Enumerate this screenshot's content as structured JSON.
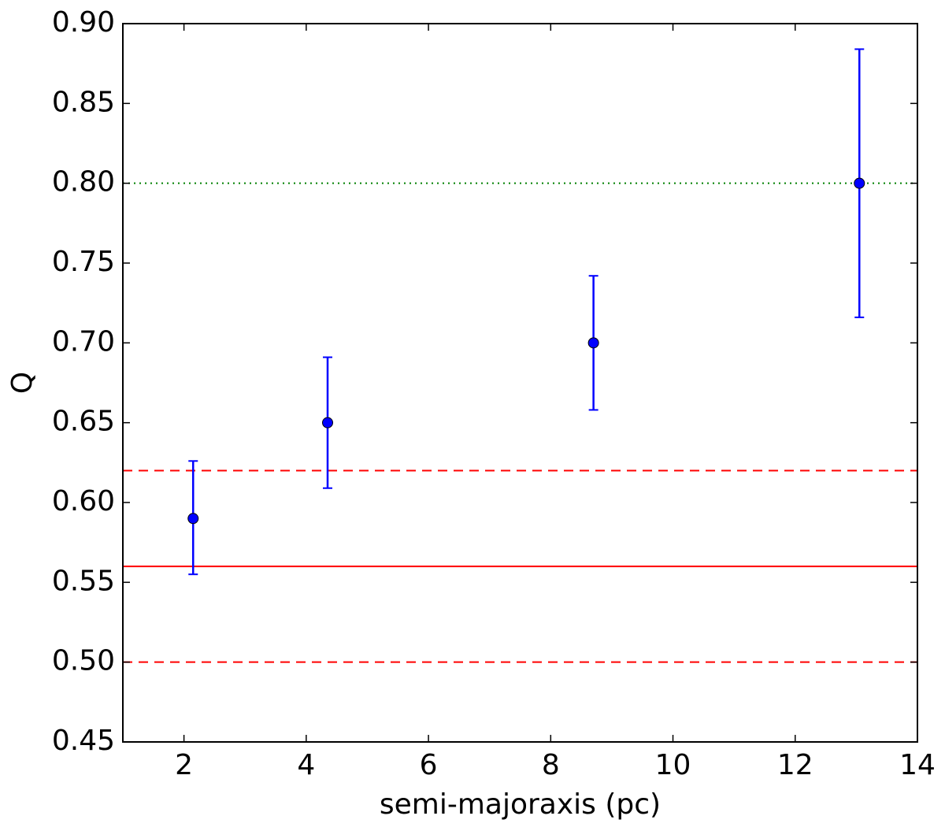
{
  "chart_data": {
    "type": "scatter",
    "xlabel": "semi-majoraxis (pc)",
    "ylabel": "Q",
    "xlim": [
      1,
      14
    ],
    "ylim": [
      0.45,
      0.9
    ],
    "xticks": [
      2,
      4,
      6,
      8,
      10,
      12,
      14
    ],
    "yticks": [
      0.45,
      0.5,
      0.55,
      0.6,
      0.65,
      0.7,
      0.75,
      0.8,
      0.85,
      0.9
    ],
    "grid": false,
    "series": [
      {
        "color": "#0000ff",
        "points": [
          {
            "x": 2.15,
            "y": 0.59,
            "err_low": 0.555,
            "err_high": 0.626
          },
          {
            "x": 4.35,
            "y": 0.65,
            "err_low": 0.609,
            "err_high": 0.691
          },
          {
            "x": 8.7,
            "y": 0.7,
            "err_low": 0.658,
            "err_high": 0.742
          },
          {
            "x": 13.05,
            "y": 0.8,
            "err_low": 0.716,
            "err_high": 0.884
          }
        ]
      }
    ],
    "reference_lines": [
      {
        "y": 0.56,
        "color": "#ff0000",
        "style": "solid"
      },
      {
        "y": 0.62,
        "color": "#ff0000",
        "style": "dashed"
      },
      {
        "y": 0.5,
        "color": "#ff0000",
        "style": "dashed"
      },
      {
        "y": 0.8,
        "color": "#008000",
        "style": "dotted"
      }
    ]
  }
}
